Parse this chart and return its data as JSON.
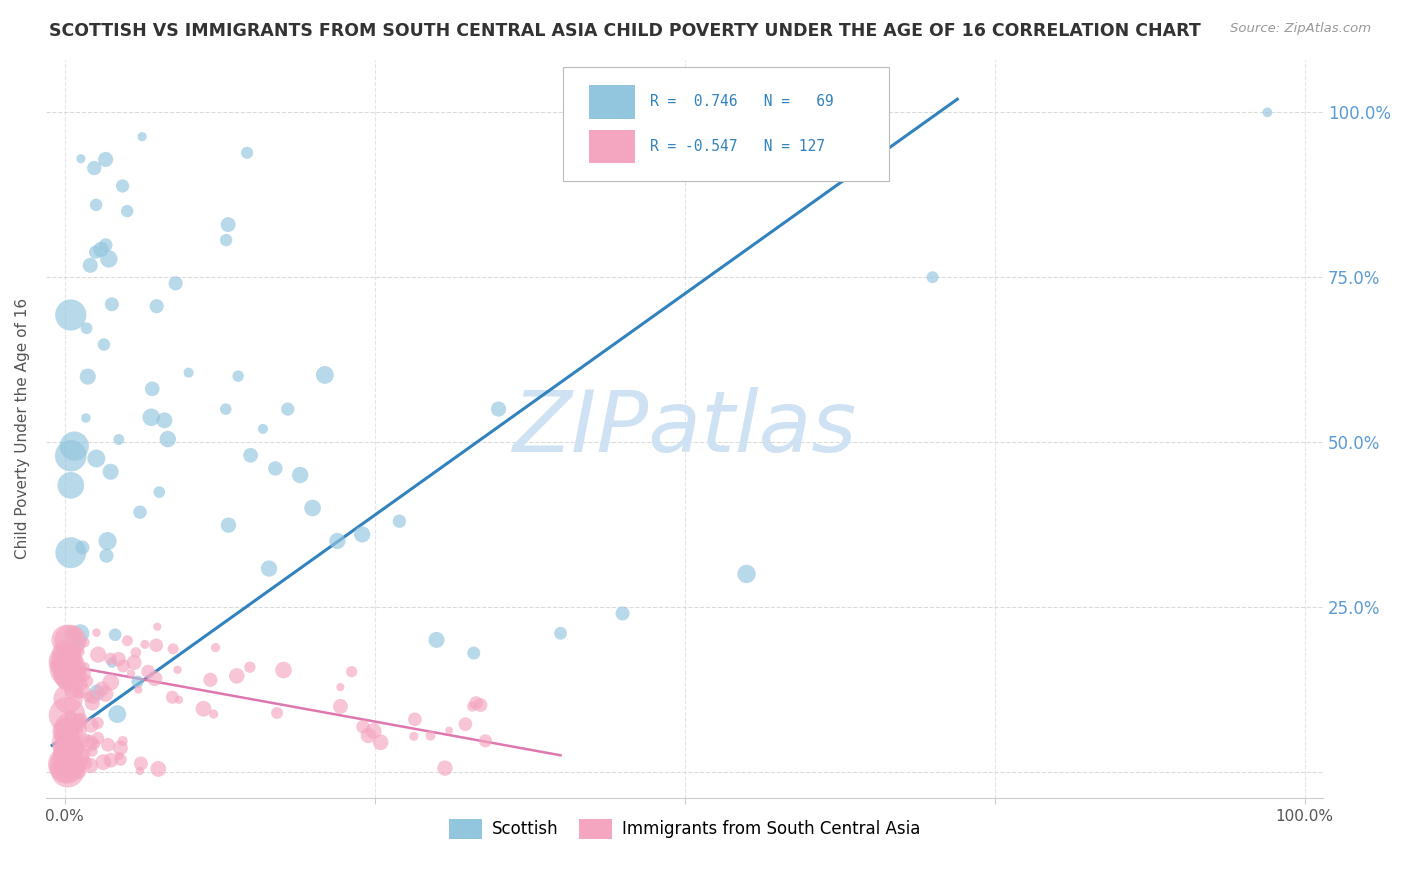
{
  "title": "SCOTTISH VS IMMIGRANTS FROM SOUTH CENTRAL ASIA CHILD POVERTY UNDER THE AGE OF 16 CORRELATION CHART",
  "source": "Source: ZipAtlas.com",
  "ylabel": "Child Poverty Under the Age of 16",
  "legend_blue_R": "0.746",
  "legend_blue_N": "69",
  "legend_pink_R": "-0.547",
  "legend_pink_N": "127",
  "legend_label_blue": "Scottish",
  "legend_label_pink": "Immigrants from South Central Asia",
  "blue_color": "#92c5de",
  "pink_color": "#f4a6c0",
  "blue_line_color": "#3182bd",
  "pink_line_color": "#de77ae",
  "watermark_text": "ZIPatlas",
  "watermark_color": "#cfe2f3",
  "background_color": "#ffffff",
  "grid_color": "#cccccc",
  "title_color": "#333333",
  "source_color": "#999999",
  "right_tick_color": "#5b9bd5",
  "axis_label_color": "#555555"
}
